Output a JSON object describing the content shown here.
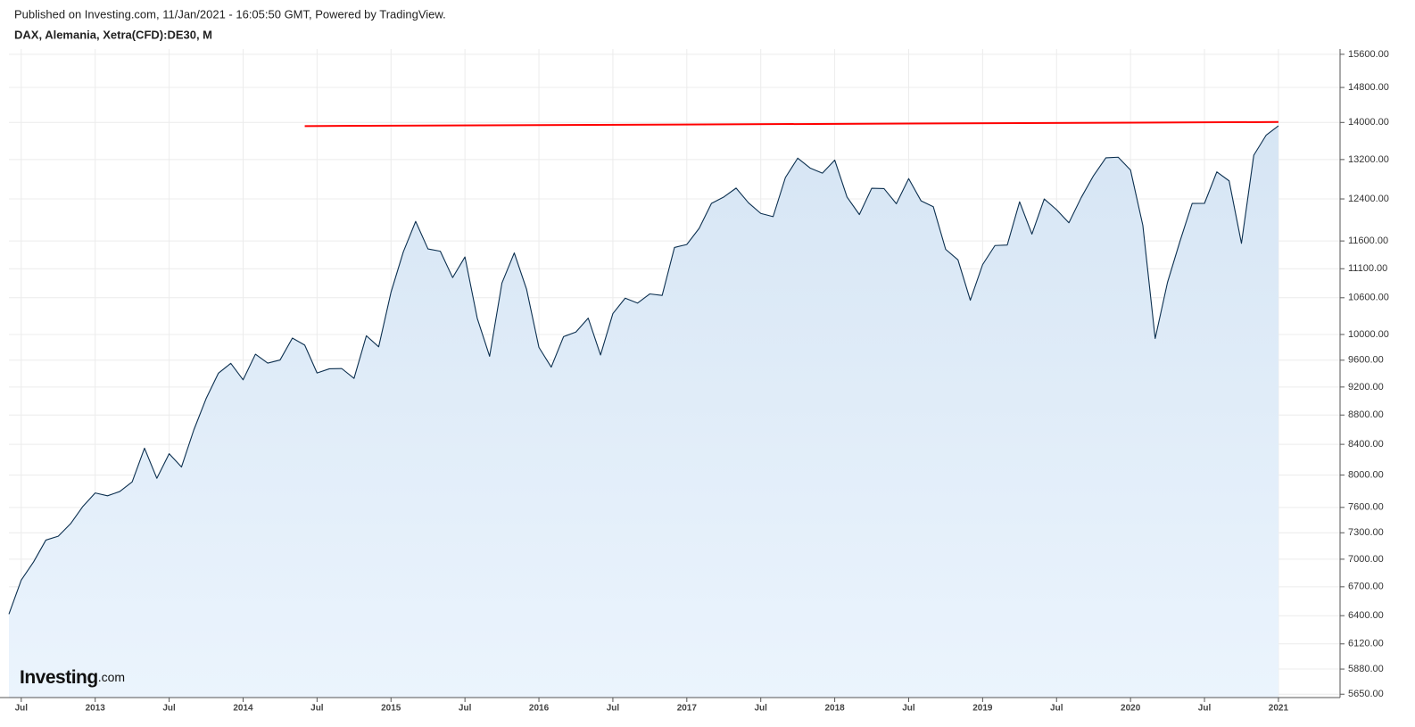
{
  "header": "Published on Investing.com, 11/Jan/2021 - 16:05:50 GMT, Powered by TradingView.",
  "logo": [
    "Investing",
    ".com"
  ],
  "chart_data": {
    "type": "area",
    "title": "DAX, Alemania, Xetra(CFD):DE30, M",
    "log_scale": true,
    "grid": true,
    "color": "#0b2f4f",
    "fill": "#dce9f6",
    "x": [
      "2012-06",
      "2012-07",
      "2012-08",
      "2012-09",
      "2012-10",
      "2012-11",
      "2012-12",
      "2013-01",
      "2013-02",
      "2013-03",
      "2013-04",
      "2013-05",
      "2013-06",
      "2013-07",
      "2013-08",
      "2013-09",
      "2013-10",
      "2013-11",
      "2013-12",
      "2014-01",
      "2014-02",
      "2014-03",
      "2014-04",
      "2014-05",
      "2014-06",
      "2014-07",
      "2014-08",
      "2014-09",
      "2014-10",
      "2014-11",
      "2014-12",
      "2015-01",
      "2015-02",
      "2015-03",
      "2015-04",
      "2015-05",
      "2015-06",
      "2015-07",
      "2015-08",
      "2015-09",
      "2015-10",
      "2015-11",
      "2015-12",
      "2016-01",
      "2016-02",
      "2016-03",
      "2016-04",
      "2016-05",
      "2016-06",
      "2016-07",
      "2016-08",
      "2016-09",
      "2016-10",
      "2016-11",
      "2016-12",
      "2017-01",
      "2017-02",
      "2017-03",
      "2017-04",
      "2017-05",
      "2017-06",
      "2017-07",
      "2017-08",
      "2017-09",
      "2017-10",
      "2017-11",
      "2017-12",
      "2018-01",
      "2018-02",
      "2018-03",
      "2018-04",
      "2018-05",
      "2018-06",
      "2018-07",
      "2018-08",
      "2018-09",
      "2018-10",
      "2018-11",
      "2018-12",
      "2019-01",
      "2019-02",
      "2019-03",
      "2019-04",
      "2019-05",
      "2019-06",
      "2019-07",
      "2019-08",
      "2019-09",
      "2019-10",
      "2019-11",
      "2019-12",
      "2020-01",
      "2020-02",
      "2020-03",
      "2020-04",
      "2020-05",
      "2020-06",
      "2020-07",
      "2020-08",
      "2020-09",
      "2020-10",
      "2020-11",
      "2020-12",
      "2021-01"
    ],
    "values": [
      6416,
      6772,
      6970,
      7216,
      7260,
      7405,
      7612,
      7776,
      7741,
      7795,
      7914,
      8349,
      7959,
      8276,
      8103,
      8594,
      9033,
      9405,
      9552,
      9306,
      9692,
      9556,
      9603,
      9943,
      9833,
      9407,
      9470,
      9474,
      9327,
      9980,
      9806,
      10694,
      11402,
      11966,
      11454,
      11413,
      10945,
      11309,
      10259,
      9660,
      10850,
      11382,
      10743,
      9798,
      9495,
      9966,
      10039,
      10263,
      9680,
      10337,
      10593,
      10511,
      10665,
      10640,
      11481,
      11535,
      11834,
      12313,
      12438,
      12615,
      12325,
      12118,
      12056,
      12829,
      13230,
      13024,
      12918,
      13189,
      12436,
      12097,
      12612,
      12605,
      12306,
      12806,
      12364,
      12247,
      11447,
      11257,
      10559,
      11173,
      11516,
      11526,
      12344,
      11727,
      12399,
      12189,
      11939,
      12428,
      12867,
      13236,
      13249,
      12982,
      11890,
      9936,
      10862,
      11587,
      12311,
      12313,
      12945,
      12761,
      11556,
      13291,
      13719,
      13926
    ],
    "trend_line": {
      "x": [
        "2014-06",
        "2021-01"
      ],
      "values": [
        13920,
        14010
      ],
      "color": "#ff0000"
    },
    "xlim": [
      "2012-06",
      "2021-06"
    ],
    "xticks": [
      {
        "value": "2012-07",
        "label": "Jul"
      },
      {
        "value": "2013-01",
        "label": "2013"
      },
      {
        "value": "2013-07",
        "label": "Jul"
      },
      {
        "value": "2014-01",
        "label": "2014"
      },
      {
        "value": "2014-07",
        "label": "Jul"
      },
      {
        "value": "2015-01",
        "label": "2015"
      },
      {
        "value": "2015-07",
        "label": "Jul"
      },
      {
        "value": "2016-01",
        "label": "2016"
      },
      {
        "value": "2016-07",
        "label": "Jul"
      },
      {
        "value": "2017-01",
        "label": "2017"
      },
      {
        "value": "2017-07",
        "label": "Jul"
      },
      {
        "value": "2018-01",
        "label": "2018"
      },
      {
        "value": "2018-07",
        "label": "Jul"
      },
      {
        "value": "2019-01",
        "label": "2019"
      },
      {
        "value": "2019-07",
        "label": "Jul"
      },
      {
        "value": "2020-01",
        "label": "2020"
      },
      {
        "value": "2020-07",
        "label": "Jul"
      },
      {
        "value": "2021-01",
        "label": "2021"
      }
    ],
    "ylim": [
      5620,
      15730
    ],
    "yticks": [
      {
        "value": 15600,
        "label": "15600.00"
      },
      {
        "value": 14800,
        "label": "14800.00"
      },
      {
        "value": 14000,
        "label": "14000.00"
      },
      {
        "value": 13200,
        "label": "13200.00"
      },
      {
        "value": 12400,
        "label": "12400.00"
      },
      {
        "value": 11600,
        "label": "11600.00"
      },
      {
        "value": 11100,
        "label": "11100.00"
      },
      {
        "value": 10600,
        "label": "10600.00"
      },
      {
        "value": 10000,
        "label": "10000.00"
      },
      {
        "value": 9600,
        "label": "9600.00"
      },
      {
        "value": 9200,
        "label": "9200.00"
      },
      {
        "value": 8800,
        "label": "8800.00"
      },
      {
        "value": 8400,
        "label": "8400.00"
      },
      {
        "value": 8000,
        "label": "8000.00"
      },
      {
        "value": 7600,
        "label": "7600.00"
      },
      {
        "value": 7300,
        "label": "7300.00"
      },
      {
        "value": 7000,
        "label": "7000.00"
      },
      {
        "value": 6700,
        "label": "6700.00"
      },
      {
        "value": 6400,
        "label": "6400.00"
      },
      {
        "value": 6120,
        "label": "6120.00"
      },
      {
        "value": 5880,
        "label": "5880.00"
      },
      {
        "value": 5650,
        "label": "5650.00"
      }
    ]
  }
}
